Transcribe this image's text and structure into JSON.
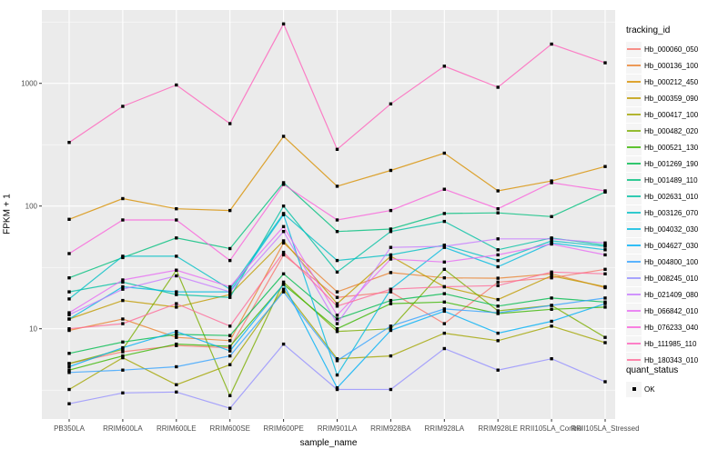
{
  "chart_data": {
    "type": "line",
    "title": "",
    "xlabel": "sample_name",
    "ylabel": "FPKM + 1",
    "y_scale": "log10",
    "y_ticks": [
      10,
      100,
      1000
    ],
    "y_minor": [
      3.162,
      31.62,
      316.2,
      3162
    ],
    "ylim": [
      1.8,
      3900
    ],
    "grid": "white-on-gray",
    "panel_color": "#EBEBEB",
    "tick_label_color": "#4D4D4D",
    "point_color": "#000000",
    "legend_title": "tracking_id",
    "legend_position": "right",
    "categories": [
      "PB350LA",
      "RRIM600LA",
      "RRIM600LE",
      "RRIM600SE",
      "RRIM600PE",
      "RRIM901LA",
      "RRIM928BA",
      "RRIM928LA",
      "RRIM928LE",
      "RRII105LA_Control",
      "RRII105LA_Stressed"
    ],
    "series": [
      {
        "name": "Hb_000060_050",
        "color": "#F8766D",
        "values": [
          5.2,
          6.5,
          7.3,
          7.0,
          40,
          18,
          20,
          11,
          24,
          26,
          30.5
        ]
      },
      {
        "name": "Hb_000136_100",
        "color": "#EA8331",
        "values": [
          9.7,
          12,
          8.5,
          8.0,
          50,
          20,
          28.7,
          26,
          25.8,
          28,
          21.6
        ]
      },
      {
        "name": "Hb_000212_450",
        "color": "#D89000",
        "values": [
          78,
          115,
          95,
          92,
          370,
          145,
          195,
          270,
          133,
          160,
          210
        ]
      },
      {
        "name": "Hb_000359_090",
        "color": "#C09B00",
        "values": [
          12,
          17,
          15,
          19,
          52,
          16,
          39,
          22,
          17.3,
          27,
          22
        ]
      },
      {
        "name": "Hb_000417_100",
        "color": "#A3A500",
        "values": [
          3.2,
          5.8,
          3.5,
          5.1,
          21,
          5.7,
          6.0,
          9.2,
          8.0,
          10.5,
          7.7
        ]
      },
      {
        "name": "Hb_000482_020",
        "color": "#7CAE00",
        "values": [
          5.2,
          6.8,
          30,
          2.85,
          24,
          9.5,
          10,
          30.5,
          14,
          15.5,
          8.5
        ]
      },
      {
        "name": "Hb_000521_130",
        "color": "#39B600",
        "values": [
          4.6,
          6.0,
          7.5,
          7.2,
          23,
          10,
          16,
          16.5,
          13.3,
          14.4,
          15
        ]
      },
      {
        "name": "Hb_001269_190",
        "color": "#00BB4E",
        "values": [
          6.3,
          7.8,
          9.0,
          8.8,
          28,
          12,
          17,
          19.3,
          15.3,
          17.8,
          16.5
        ]
      },
      {
        "name": "Hb_001489_110",
        "color": "#00BF7D",
        "values": [
          26,
          38,
          55,
          45,
          155,
          62,
          65,
          87,
          88,
          82,
          130
        ]
      },
      {
        "name": "Hb_002631_010",
        "color": "#00C1A3",
        "values": [
          20,
          24,
          19,
          18,
          100,
          29,
          62,
          75,
          44,
          55,
          48
        ]
      },
      {
        "name": "Hb_003126_070",
        "color": "#00BFC4",
        "values": [
          17.5,
          39,
          39,
          21,
          87,
          36,
          40,
          48,
          36,
          52,
          47
        ]
      },
      {
        "name": "Hb_004032_030",
        "color": "#00BAE0",
        "values": [
          12,
          22,
          20,
          20,
          85,
          4.2,
          21,
          46,
          32,
          50,
          44
        ]
      },
      {
        "name": "Hb_004627_030",
        "color": "#00B0F6",
        "values": [
          4.9,
          7.0,
          9.5,
          6.6,
          23,
          3.3,
          9.7,
          13.9,
          9.2,
          11.5,
          16
        ]
      },
      {
        "name": "Hb_004800_100",
        "color": "#35A2FF",
        "values": [
          4.4,
          4.6,
          4.9,
          6.0,
          20,
          5.5,
          10.5,
          14.5,
          13.5,
          15.5,
          17.8
        ]
      },
      {
        "name": "Hb_008245_010",
        "color": "#9590FF",
        "values": [
          2.45,
          3.0,
          3.05,
          2.25,
          7.5,
          3.2,
          3.2,
          6.9,
          4.6,
          5.7,
          3.7
        ]
      },
      {
        "name": "Hb_021409_080",
        "color": "#C77CFF",
        "values": [
          13,
          21,
          27,
          20,
          62,
          11,
          46,
          47,
          54,
          54,
          50
        ]
      },
      {
        "name": "Hb_066842_010",
        "color": "#E76BF3",
        "values": [
          13.5,
          25,
          30,
          22,
          68,
          12.9,
          37,
          35,
          40,
          49,
          40
        ]
      },
      {
        "name": "Hb_076233_040",
        "color": "#FA62DB",
        "values": [
          41,
          77,
          77,
          36,
          150,
          77,
          92,
          137,
          95,
          155,
          133
        ]
      },
      {
        "name": "Hb_111985_110",
        "color": "#FF62BC",
        "values": [
          330,
          650,
          970,
          470,
          3050,
          290,
          680,
          1380,
          930,
          2090,
          1470
        ]
      },
      {
        "name": "Hb_180343_010",
        "color": "#FF6A98",
        "values": [
          10,
          11,
          16,
          10.5,
          42,
          15.3,
          21,
          22,
          22.5,
          29,
          28
        ]
      }
    ],
    "quant_legend": {
      "title": "quant_status",
      "items": [
        "OK"
      ]
    }
  }
}
